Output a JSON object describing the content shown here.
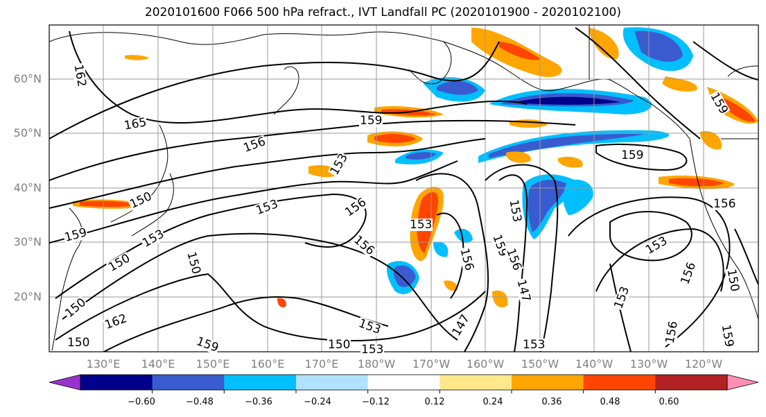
{
  "title": "2020101600 F066 500 hPa refract., IVT Landfall PC (2020101900 - 2020102100)",
  "lat_ticks": [
    "60°N",
    "50°N",
    "40°N",
    "30°N",
    "20°N"
  ],
  "lon_ticks": [
    "130°E",
    "140°E",
    "150°E",
    "160°E",
    "170°E",
    "180°W",
    "170°W",
    "160°W",
    "150°W",
    "140°W",
    "130°W",
    "120°W"
  ],
  "contour_labels": [
    "162",
    "165",
    "159",
    "156",
    "153",
    "150",
    "153",
    "156",
    "159",
    "153",
    "159",
    "156",
    "153",
    "156",
    "150",
    "150",
    "159",
    "156",
    "153",
    "147",
    "150",
    "153",
    "150",
    "147",
    "156",
    "159",
    "153",
    "153",
    "153",
    "156",
    "150",
    "156",
    "159",
    "153",
    "162",
    "159",
    "150"
  ],
  "colorbar": {
    "labels": [
      "−0.60",
      "−0.48",
      "−0.36",
      "−0.24",
      "−0.12",
      "0.12",
      "0.24",
      "0.36",
      "0.48",
      "0.60"
    ],
    "colors": [
      "#9932cc",
      "#00008b",
      "#3a5bd0",
      "#00bfff",
      "#b0e2ff",
      "#ffffff",
      "#ffe88a",
      "#ffa500",
      "#ff4500",
      "#b22222",
      "#ff8fb1"
    ]
  }
}
